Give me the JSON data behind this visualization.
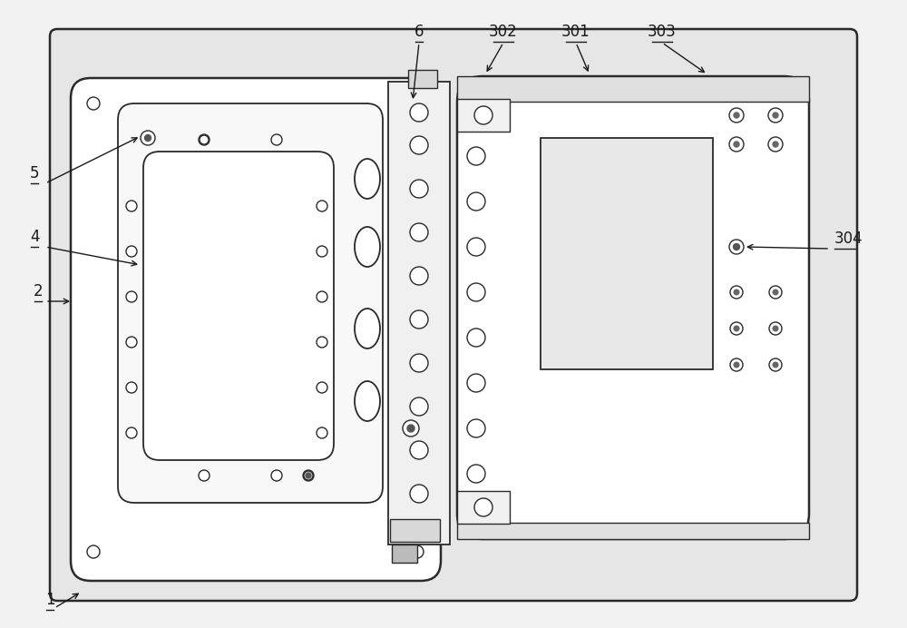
{
  "bg_color": "#f2f2f2",
  "line_color": "#2a2a2a",
  "fill_color": "#ffffff",
  "plate_fill": "#f8f8f8",
  "strip_fill": "#f0f0f0",
  "tab_fill": "#d8d8d8",
  "ann_color": "#1a1a1a"
}
